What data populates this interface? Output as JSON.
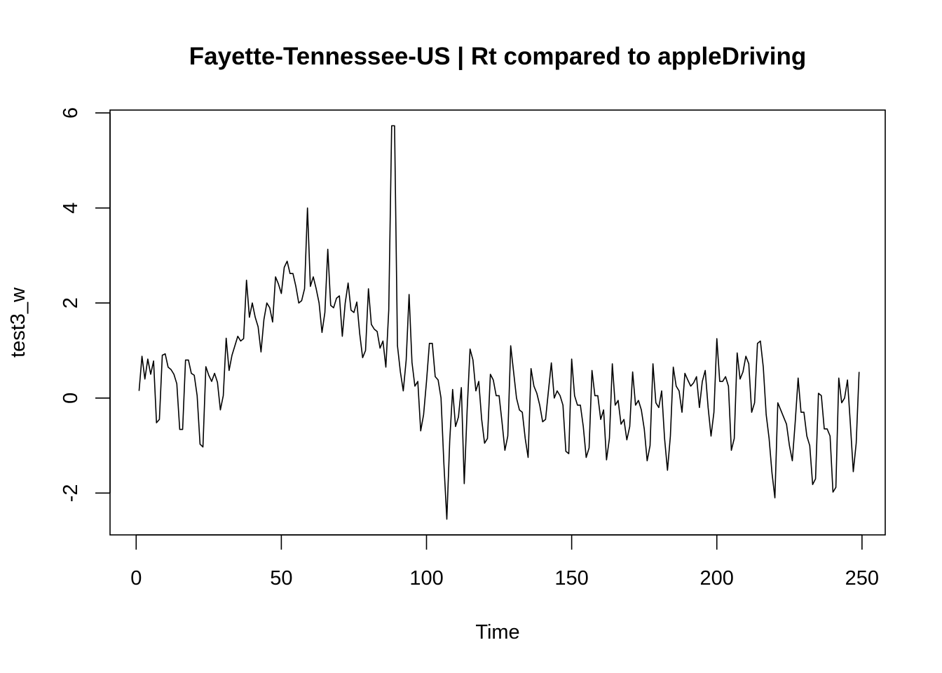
{
  "chart_data": {
    "type": "line",
    "title": "Fayette-Tennessee-US | Rt compared to appleDriving",
    "xlabel": "Time",
    "ylabel": "test3_w",
    "xlim": [
      -9,
      258
    ],
    "ylim": [
      -2.88,
      6.06
    ],
    "x_ticks": [
      0,
      50,
      100,
      150,
      200,
      250
    ],
    "y_ticks": [
      -2,
      0,
      2,
      4,
      6
    ],
    "x_tick_labels": [
      "0",
      "50",
      "100",
      "150",
      "200",
      "250"
    ],
    "y_tick_labels": [
      "-2",
      "0",
      "2",
      "4",
      "6"
    ],
    "grid": false,
    "legend": "none",
    "line_color": "#000000",
    "x_start": 1,
    "values": [
      0.15,
      0.88,
      0.4,
      0.82,
      0.5,
      0.78,
      -0.52,
      -0.45,
      0.9,
      0.93,
      0.65,
      0.6,
      0.5,
      0.3,
      -0.66,
      -0.66,
      0.8,
      0.8,
      0.52,
      0.48,
      0.05,
      -0.97,
      -1.03,
      0.66,
      0.48,
      0.35,
      0.52,
      0.33,
      -0.25,
      0.05,
      1.26,
      0.58,
      0.9,
      1.1,
      1.3,
      1.2,
      1.25,
      2.48,
      1.7,
      2.0,
      1.7,
      1.5,
      0.97,
      1.65,
      2.0,
      1.9,
      1.6,
      2.55,
      2.4,
      2.2,
      2.75,
      2.88,
      2.62,
      2.62,
      2.35,
      2.0,
      2.05,
      2.3,
      4.0,
      2.35,
      2.55,
      2.3,
      2.0,
      1.38,
      1.8,
      3.13,
      1.95,
      1.9,
      2.1,
      2.15,
      1.3,
      2.0,
      2.42,
      1.85,
      1.8,
      2.02,
      1.35,
      0.85,
      1.0,
      2.3,
      1.55,
      1.45,
      1.4,
      1.05,
      1.2,
      0.65,
      1.85,
      5.73,
      5.73,
      1.1,
      0.55,
      0.15,
      0.8,
      2.18,
      0.75,
      0.25,
      0.35,
      -0.69,
      -0.35,
      0.35,
      1.15,
      1.15,
      0.45,
      0.38,
      0.0,
      -1.4,
      -2.55,
      -0.9,
      0.18,
      -0.6,
      -0.4,
      0.22,
      -1.8,
      -0.25,
      1.03,
      0.8,
      0.15,
      0.35,
      -0.45,
      -0.95,
      -0.85,
      0.5,
      0.38,
      0.05,
      0.05,
      -0.5,
      -1.1,
      -0.8,
      1.1,
      0.55,
      0.0,
      -0.25,
      -0.3,
      -0.85,
      -1.25,
      0.62,
      0.25,
      0.1,
      -0.15,
      -0.5,
      -0.45,
      0.15,
      0.74,
      0.0,
      0.15,
      0.05,
      -0.15,
      -1.12,
      -1.17,
      0.82,
      0.05,
      -0.15,
      -0.15,
      -0.6,
      -1.25,
      -1.05,
      0.58,
      0.05,
      0.05,
      -0.45,
      -0.25,
      -1.3,
      -0.85,
      0.72,
      -0.15,
      -0.05,
      -0.55,
      -0.45,
      -0.88,
      -0.6,
      0.55,
      -0.15,
      -0.05,
      -0.25,
      -0.65,
      -1.32,
      -1.0,
      0.72,
      -0.1,
      -0.2,
      0.15,
      -0.85,
      -1.52,
      -0.8,
      0.65,
      0.25,
      0.15,
      -0.3,
      0.52,
      0.38,
      0.25,
      0.32,
      0.45,
      -0.2,
      0.35,
      0.58,
      -0.2,
      -0.8,
      -0.3,
      1.25,
      0.35,
      0.35,
      0.45,
      0.25,
      -1.1,
      -0.85,
      0.95,
      0.4,
      0.55,
      0.88,
      0.72,
      -0.3,
      -0.1,
      1.15,
      1.2,
      0.65,
      -0.35,
      -0.85,
      -1.58,
      -2.1,
      -0.1,
      -0.25,
      -0.4,
      -0.55,
      -1.0,
      -1.32,
      -0.5,
      0.42,
      -0.3,
      -0.3,
      -0.8,
      -1.0,
      -1.82,
      -1.7,
      0.1,
      0.05,
      -0.65,
      -0.65,
      -0.8,
      -1.98,
      -1.88,
      0.42,
      -0.1,
      0.0,
      0.38,
      -0.55,
      -1.55,
      -0.95,
      0.55
    ]
  }
}
